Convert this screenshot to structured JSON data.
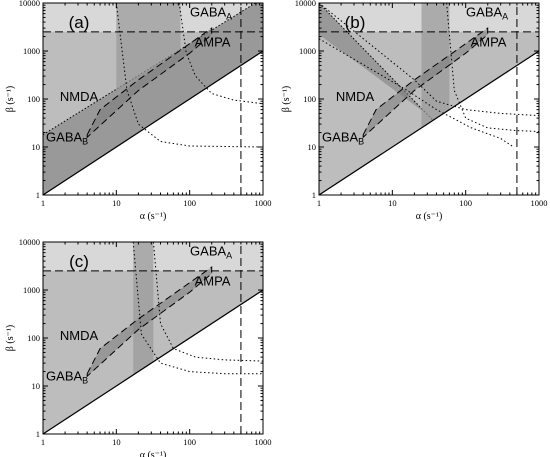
{
  "figure": {
    "axis_labels": {
      "x": "α (s⁻¹)",
      "y": "β (s⁻¹)"
    }
  },
  "chart_data": [
    {
      "type": "area",
      "panel_label": "(a)",
      "xlabel": "α (s⁻¹)",
      "ylabel": "β (s⁻¹)",
      "xscale": "log",
      "yscale": "log",
      "xlim": [
        1,
        1000
      ],
      "ylim": [
        1,
        10000
      ],
      "x_ticks": [
        {
          "v": 1,
          "label": "1"
        },
        {
          "v": 10,
          "label": "10"
        },
        {
          "v": 100,
          "label": "100"
        },
        {
          "v": 1000,
          "label": "1000"
        }
      ],
      "y_ticks": [
        {
          "v": 1,
          "label": "1"
        },
        {
          "v": 10,
          "label": "10"
        },
        {
          "v": 100,
          "label": "100"
        },
        {
          "v": 1000,
          "label": "1000"
        },
        {
          "v": 10000,
          "label": "10000"
        }
      ],
      "reference_lines": {
        "beta_dashed": 2500,
        "alpha_dashed": 500,
        "diagonal": "beta = alpha"
      },
      "upper_band_line": {
        "x": [
          1,
          1000
        ],
        "y": [
          18,
          12500
        ]
      },
      "vertical_band": {
        "x": [
          10,
          75
        ]
      },
      "dotted_curves": [
        {
          "x": [
            72,
            90,
            120,
            200,
            400,
            1000
          ],
          "y": [
            10000,
            900,
            300,
            130,
            95,
            80
          ]
        },
        {
          "x": [
            10,
            14,
            20,
            40,
            100,
            1000
          ],
          "y": [
            10000,
            150,
            30,
            13,
            10.5,
            10
          ]
        }
      ],
      "receptors": [
        {
          "name": "GABA",
          "sub": "A",
          "label_at": [
            380,
            5200
          ]
        },
        {
          "name": "AMPA",
          "sub": "",
          "label_at": [
            360,
            1250
          ]
        },
        {
          "name": "NMDA",
          "sub": "",
          "label_at": [
            1.7,
            90
          ]
        },
        {
          "name": "GABA",
          "sub": "B",
          "label_at": [
            1.1,
            13
          ]
        }
      ],
      "receptor_band": {
        "top": {
          "x": [
            4,
            6,
            20,
            200
          ],
          "y": [
            18,
            60,
            250,
            3000
          ]
        },
        "bottom": {
          "x": [
            200,
            100,
            20,
            4
          ],
          "y": [
            2200,
            900,
            150,
            16
          ]
        }
      }
    },
    {
      "type": "area",
      "panel_label": "(b)",
      "xlabel": "α (s⁻¹)",
      "ylabel": "β (s⁻¹)",
      "xscale": "log",
      "yscale": "log",
      "xlim": [
        1,
        1000
      ],
      "ylim": [
        1,
        10000
      ],
      "x_ticks": [
        {
          "v": 1,
          "label": "1"
        },
        {
          "v": 10,
          "label": "10"
        },
        {
          "v": 100,
          "label": "100"
        },
        {
          "v": 1000,
          "label": "1000"
        }
      ],
      "y_ticks": [
        {
          "v": 1,
          "label": "1"
        },
        {
          "v": 10,
          "label": "10"
        },
        {
          "v": 100,
          "label": "100"
        },
        {
          "v": 1000,
          "label": "1000"
        },
        {
          "v": 10000,
          "label": "10000"
        }
      ],
      "reference_lines": {
        "beta_dashed": 2500,
        "alpha_dashed": 500,
        "diagonal": "beta = alpha"
      },
      "decreasing_band": {
        "upper": {
          "x": [
            1,
            60
          ],
          "y": [
            10000,
            16
          ]
        },
        "lower": {
          "x": [
            1,
            110
          ],
          "y": [
            2200,
            11
          ]
        }
      },
      "vertical_band": {
        "x": [
          25,
          60
        ]
      },
      "dotted_curves": [
        {
          "x": [
            1,
            20,
            40,
            100,
            300,
            1000
          ],
          "y": [
            10000,
            250,
            90,
            60,
            50,
            45
          ]
        },
        {
          "x": [
            55,
            70,
            100,
            200,
            500,
            1000
          ],
          "y": [
            10000,
            150,
            40,
            25,
            22,
            21
          ]
        },
        {
          "x": [
            1,
            15,
            40,
            120,
            300,
            450
          ],
          "y": [
            1800,
            160,
            60,
            25,
            15,
            10
          ]
        }
      ],
      "receptors": [
        {
          "name": "GABA",
          "sub": "A",
          "label_at": [
            380,
            5200
          ]
        },
        {
          "name": "AMPA",
          "sub": "",
          "label_at": [
            360,
            1250
          ]
        },
        {
          "name": "NMDA",
          "sub": "",
          "label_at": [
            1.7,
            90
          ]
        },
        {
          "name": "GABA",
          "sub": "B",
          "label_at": [
            1.1,
            13
          ]
        }
      ],
      "receptor_band": {
        "top": {
          "x": [
            4,
            6,
            20,
            200
          ],
          "y": [
            18,
            60,
            250,
            3000
          ]
        },
        "bottom": {
          "x": [
            200,
            100,
            20,
            4
          ],
          "y": [
            2200,
            900,
            150,
            16
          ]
        }
      }
    },
    {
      "type": "area",
      "panel_label": "(c)",
      "xlabel": "α (s⁻¹)",
      "ylabel": "β (s⁻¹)",
      "xscale": "log",
      "yscale": "log",
      "xlim": [
        1,
        1000
      ],
      "ylim": [
        1,
        10000
      ],
      "x_ticks": [
        {
          "v": 1,
          "label": "1"
        },
        {
          "v": 10,
          "label": "10"
        },
        {
          "v": 100,
          "label": "100"
        },
        {
          "v": 1000,
          "label": "1000"
        }
      ],
      "y_ticks": [
        {
          "v": 1,
          "label": "1"
        },
        {
          "v": 10,
          "label": "10"
        },
        {
          "v": 100,
          "label": "100"
        },
        {
          "v": 1000,
          "label": "1000"
        },
        {
          "v": 10000,
          "label": "10000"
        }
      ],
      "reference_lines": {
        "beta_dashed": 2500,
        "alpha_dashed": 500,
        "diagonal": "beta = alpha"
      },
      "vertical_band": {
        "x": [
          17,
          32
        ]
      },
      "dotted_curves": [
        {
          "x": [
            32,
            40,
            60,
            120,
            300,
            1000
          ],
          "y": [
            10000,
            200,
            60,
            40,
            35,
            33
          ]
        },
        {
          "x": [
            17,
            22,
            40,
            100,
            300,
            1000
          ],
          "y": [
            10000,
            120,
            30,
            20,
            18,
            18
          ]
        }
      ],
      "receptors": [
        {
          "name": "GABA",
          "sub": "A",
          "label_at": [
            380,
            5200
          ]
        },
        {
          "name": "AMPA",
          "sub": "",
          "label_at": [
            360,
            1250
          ]
        },
        {
          "name": "NMDA",
          "sub": "",
          "label_at": [
            1.7,
            90
          ]
        },
        {
          "name": "GABA",
          "sub": "B",
          "label_at": [
            1.1,
            13
          ]
        }
      ],
      "receptor_band": {
        "top": {
          "x": [
            4,
            6,
            20,
            200
          ],
          "y": [
            18,
            60,
            250,
            3000
          ]
        },
        "bottom": {
          "x": [
            200,
            100,
            20,
            4
          ],
          "y": [
            2200,
            900,
            150,
            16
          ]
        }
      }
    }
  ]
}
